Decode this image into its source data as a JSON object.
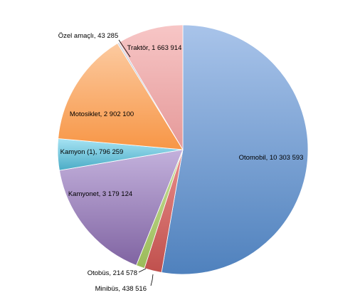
{
  "chart_data": {
    "type": "pie",
    "title": "",
    "slices": [
      {
        "name": "Otomobil",
        "value": 10303593,
        "label": "Otomobil, 10 303 593",
        "color": "#4f81bd",
        "light": "#a9c4ea"
      },
      {
        "name": "Minibüs",
        "value": 438516,
        "label": "Minibüs,  438 516",
        "color": "#c0504d",
        "light": "#e98e8c"
      },
      {
        "name": "Otobüs",
        "value": 214578,
        "label": "Otobüs,  214 578",
        "color": "#9bbb59",
        "light": "#c9e09a"
      },
      {
        "name": "Kamyonet",
        "value": 3179124,
        "label": "Kamyonet, 3 179 124",
        "color": "#8064a2",
        "light": "#c3b1dc"
      },
      {
        "name": "Kamyon (1)",
        "value": 796259,
        "label": "Kamyon (1),  796 259",
        "color": "#4bacc6",
        "light": "#a6e3f3"
      },
      {
        "name": "Motosiklet",
        "value": 2902100,
        "label": "Motosiklet, 2 902 100",
        "color": "#f79646",
        "light": "#fccaa0"
      },
      {
        "name": "Özel amaçlı",
        "value": 43285,
        "label": "Özel amaçlı,  43 285",
        "color": "#9aa4b6",
        "light": "#cfd6e2"
      },
      {
        "name": "Traktör",
        "value": 1663914,
        "label": "Traktör, 1 663 914",
        "color": "#e59999",
        "light": "#f7c6c6"
      }
    ],
    "start_angle": "12 o'clock",
    "direction": "clockwise",
    "legend": "none"
  }
}
